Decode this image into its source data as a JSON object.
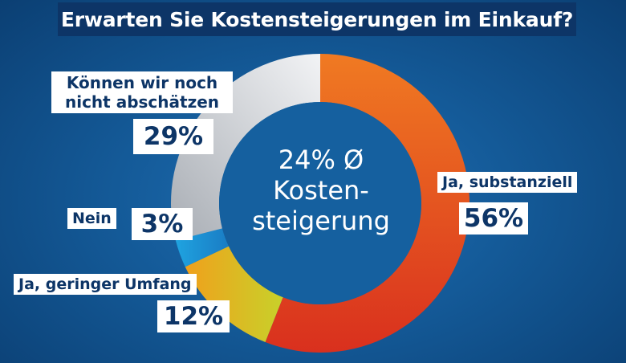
{
  "chart_data": {
    "type": "pie",
    "title": "Erwarten Sie Kostensteigerungen im Einkauf?",
    "center_label": [
      "24% Ø",
      "Kosten-",
      "steigerung"
    ],
    "slices": [
      {
        "label": "Ja, substanziell",
        "value": 56,
        "value_label": "56%",
        "color": "#e0431f"
      },
      {
        "label": "Ja, geringer Umfang",
        "value": 12,
        "value_label": "12%",
        "color": "#d9c41a"
      },
      {
        "label": "Nein",
        "value": 3,
        "value_label": "3%",
        "color": "#1e96d6"
      },
      {
        "label": "Können wir noch nicht abschätzen",
        "value": 29,
        "value_label": "29%",
        "color": "#cfd3d8"
      }
    ]
  }
}
